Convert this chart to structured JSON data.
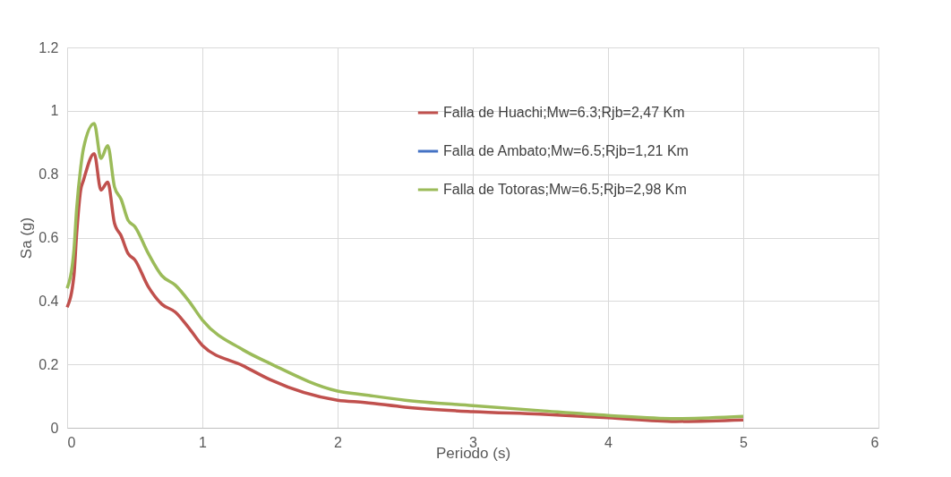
{
  "chart_data": {
    "type": "line",
    "xlabel": "Periodo (s)",
    "ylabel": "Sa (g)",
    "xlim": [
      0,
      6
    ],
    "xticks": [
      0,
      1,
      2,
      3,
      4,
      5,
      6
    ],
    "ylim": [
      0,
      1.2
    ],
    "yticks": [
      0,
      0.2,
      0.4,
      0.6,
      0.8,
      1,
      1.2
    ],
    "grid": true,
    "legend": "top right",
    "line_style": "solid",
    "marker": "none",
    "series": [
      {
        "name": "Falla de Huachi;Mw=6.3;Rjb=2,47 Km",
        "color": "#c0504d",
        "x": [
          0,
          0.05,
          0.07,
          0.1,
          0.12,
          0.2,
          0.25,
          0.3,
          0.35,
          0.4,
          0.45,
          0.5,
          0.6,
          0.7,
          0.8,
          0.9,
          1.0,
          1.3,
          1.5,
          2,
          2.2,
          2.5,
          3,
          3.5,
          4,
          4.5,
          5
        ],
        "values": [
          0.38,
          0.48,
          0.61,
          0.75,
          0.78,
          0.865,
          0.75,
          0.775,
          0.645,
          0.605,
          0.55,
          0.53,
          0.445,
          0.39,
          0.365,
          0.315,
          0.26,
          0.196,
          0.152,
          0.087,
          0.08,
          0.065,
          0.051,
          0.043,
          0.032,
          0.02,
          0.025
        ]
      },
      {
        "name": "Falla de Ambato;Mw=6.5;Rjb=1,21 Km",
        "color": "#4472c4",
        "values": [
          null
        ]
      },
      {
        "name": "Falla de Totoras;Mw=6.5;Rjb=2,98 Km",
        "color": "#9bbb59",
        "x": [
          0,
          0.05,
          0.07,
          0.1,
          0.12,
          0.2,
          0.25,
          0.3,
          0.35,
          0.4,
          0.45,
          0.5,
          0.6,
          0.7,
          0.8,
          0.9,
          1.0,
          1.3,
          1.5,
          2,
          2.2,
          2.5,
          3,
          3.5,
          4,
          4.5,
          5
        ],
        "values": [
          0.44,
          0.56,
          0.69,
          0.82,
          0.88,
          0.96,
          0.85,
          0.89,
          0.76,
          0.72,
          0.655,
          0.635,
          0.55,
          0.48,
          0.45,
          0.4,
          0.34,
          0.246,
          0.203,
          0.116,
          0.104,
          0.087,
          0.07,
          0.054,
          0.039,
          0.029,
          0.036
        ]
      }
    ]
  }
}
